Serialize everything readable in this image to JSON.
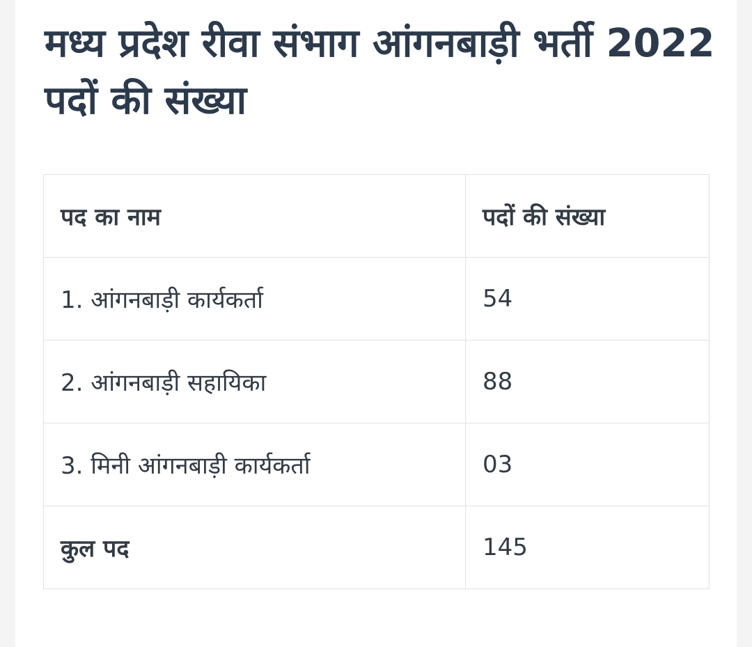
{
  "article": {
    "title": "मध्य प्रदेश रीवा संभाग आंगनबाड़ी भर्ती 2022 पदों की संख्या"
  },
  "table": {
    "headers": [
      "पद का नाम",
      "पदों की संख्या"
    ],
    "rows": [
      [
        "1. आंगनबाड़ी कार्यकर्ता",
        "54"
      ],
      [
        "2. आंगनबाड़ी सहायिका",
        "88"
      ],
      [
        "3. मिनी आंगनबाड़ी कार्यकर्ता",
        "03"
      ]
    ],
    "total": [
      "कुल पद",
      "145"
    ]
  }
}
